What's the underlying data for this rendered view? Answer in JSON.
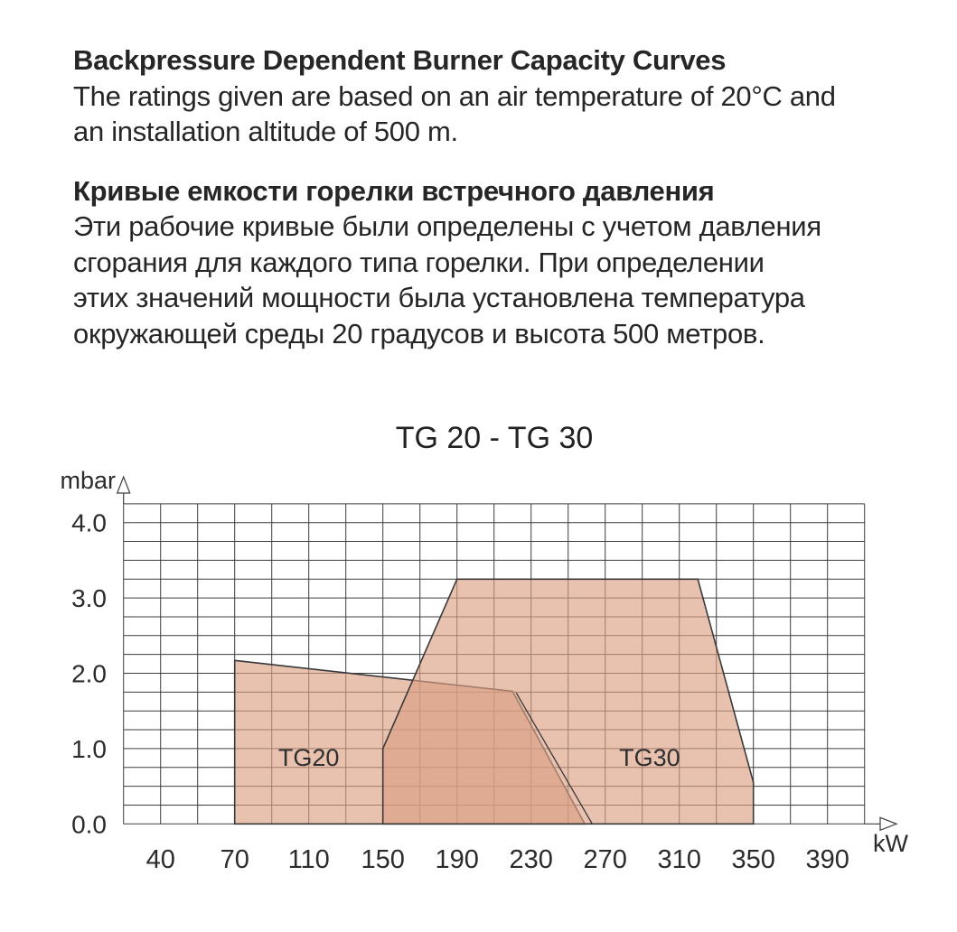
{
  "document": {
    "en": {
      "title": "Backpressure Dependent Burner Capacity Curves",
      "body": "The ratings given are based on an air temperature of 20°C and\nan installation altitude of 500 m."
    },
    "ru": {
      "title": "Кривые емкости горелки встречного давления",
      "body": "Эти рабочие кривые были определены с учетом давления\nсгорания для каждого типа горелки. При определении\nэтих значений мощности была установлена температура\nокружающей среды 20 градусов и высота 500 метров."
    }
  },
  "chart_data": {
    "type": "area",
    "title": "TG 20 - TG 30",
    "xlabel": "kW",
    "ylabel": "mbar",
    "x_ticks": [
      "40",
      "70",
      "110",
      "150",
      "190",
      "230",
      "270",
      "310",
      "350",
      "390"
    ],
    "y_ticks": [
      "0.0",
      "1.0",
      "2.0",
      "3.0",
      "4.0"
    ],
    "x_axis_note": "ticks sit on every second of 20 grid columns; 40 kW per two columns from 70 kW upward, first interval 40-70 compressed",
    "ylim": [
      0,
      4.25
    ],
    "grid": {
      "columns": 20,
      "rows": 17,
      "mbar_per_row": 0.25,
      "on": true
    },
    "series": [
      {
        "name": "TG20",
        "points_kw_mbar": [
          [
            70,
            0
          ],
          [
            70,
            2.17
          ],
          [
            220,
            1.76
          ],
          [
            259,
            0
          ]
        ],
        "label": "TG20",
        "label_pos_kw_mbar": [
          110,
          0.88
        ]
      },
      {
        "name": "TG30",
        "points_kw_mbar": [
          [
            150,
            0
          ],
          [
            150,
            1.0
          ],
          [
            190,
            3.25
          ],
          [
            320,
            3.25
          ],
          [
            350,
            0.55
          ],
          [
            350,
            0
          ]
        ],
        "label": "TG30",
        "label_pos_kw_mbar": [
          294,
          0.88
        ]
      }
    ],
    "tg20_double_edge_line_kw_mbar": [
      [
        222,
        1.74
      ],
      [
        263,
        0
      ]
    ],
    "fill_color": "#dca084",
    "fill_opacity": 0.65,
    "stroke_color": "#3a3a3a",
    "grid_color": "#3d3d3d",
    "text_color": "#2b2b2b",
    "legend_position": "inside-regions"
  }
}
